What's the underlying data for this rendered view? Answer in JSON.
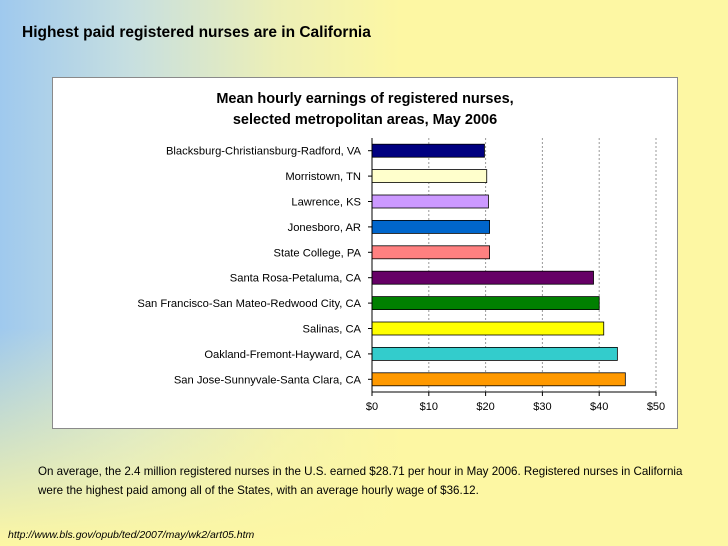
{
  "slide": {
    "title": "Highest paid registered nurses are in California",
    "caption": "On average, the 2.4 million registered nurses in the U.S. earned $28.71 per hour in May 2006. Registered nurses in California were the highest paid among all of the States, with an average hourly wage of $36.12.",
    "source_url": "http://www.bls.gov/opub/ted/2007/may/wk2/art05.htm"
  },
  "chart_data": {
    "type": "bar",
    "orientation": "horizontal",
    "title_lines": [
      "Mean hourly earnings of registered nurses,",
      "selected metropolitan areas, May 2006"
    ],
    "categories": [
      "Blacksburg-Christiansburg-Radford, VA",
      "Morristown, TN",
      "Lawrence, KS",
      "Jonesboro, AR",
      "State College, PA",
      "Santa Rosa-Petaluma, CA",
      "San Francisco-San Mateo-Redwood City, CA",
      "Salinas, CA",
      "Oakland-Fremont-Hayward, CA",
      "San Jose-Sunnyvale-Santa Clara, CA"
    ],
    "values": [
      19.8,
      20.2,
      20.5,
      20.7,
      20.7,
      39.0,
      40.0,
      40.8,
      43.2,
      44.6
    ],
    "colors": [
      "#000080",
      "#ffffcc",
      "#cc99ff",
      "#0066cc",
      "#ff8080",
      "#660066",
      "#008000",
      "#ffff00",
      "#33cccc",
      "#ff9900"
    ],
    "x_ticks": [
      "$0",
      "$10",
      "$20",
      "$30",
      "$40",
      "$50"
    ],
    "xlim": [
      0,
      50
    ],
    "grid": "vertical dashed"
  }
}
